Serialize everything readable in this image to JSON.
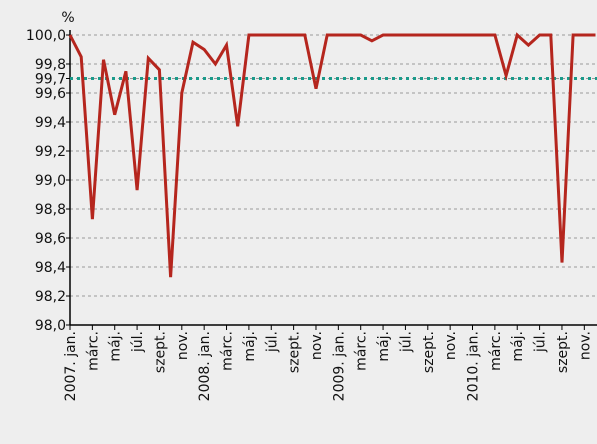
{
  "chart_data": {
    "type": "line",
    "ylabel": "%",
    "categories": [
      "2007. jan.",
      null,
      "márc.",
      null,
      "máj.",
      null,
      "júl.",
      null,
      "szept.",
      null,
      "nov.",
      null,
      "2008. jan.",
      null,
      "márc.",
      null,
      "máj.",
      null,
      "júl.",
      null,
      "szept.",
      null,
      "nov.",
      null,
      "2009. jan.",
      null,
      "márc.",
      null,
      "máj.",
      null,
      "júl.",
      null,
      "szept.",
      null,
      "nov.",
      null,
      "2010. jan.",
      null,
      "márc.",
      null,
      "máj.",
      null,
      "júl.",
      null,
      "szept.",
      null,
      "nov.",
      null
    ],
    "series": [
      {
        "color": "#b5261e",
        "values": [
          100.0,
          99.85,
          98.73,
          99.83,
          99.45,
          99.75,
          98.93,
          99.84,
          99.76,
          98.33,
          99.6,
          99.95,
          99.9,
          99.8,
          99.93,
          99.37,
          100.0,
          100.0,
          100.0,
          100.0,
          100.0,
          100.0,
          99.63,
          100.0,
          100.0,
          100.0,
          100.0,
          99.96,
          100.0,
          100.0,
          100.0,
          100.0,
          100.0,
          100.0,
          100.0,
          100.0,
          100.0,
          100.0,
          100.0,
          99.72,
          100.0,
          99.93,
          100.0,
          100.0,
          98.43,
          100.0,
          100.0,
          100.0
        ]
      }
    ],
    "reference_line": {
      "value": 99.7,
      "color": "#1a9a8a"
    },
    "ylim": [
      98.0,
      100.0
    ],
    "yticks": [
      {
        "value": 98.0,
        "label": "98,0"
      },
      {
        "value": 98.2,
        "label": "98,2"
      },
      {
        "value": 98.4,
        "label": "98,4"
      },
      {
        "value": 98.6,
        "label": "98,6"
      },
      {
        "value": 98.8,
        "label": "98,8"
      },
      {
        "value": 99.0,
        "label": "99,0"
      },
      {
        "value": 99.2,
        "label": "99,2"
      },
      {
        "value": 99.4,
        "label": "99,4"
      },
      {
        "value": 99.6,
        "label": "99,6"
      },
      {
        "value": 99.7,
        "label": "99,7"
      },
      {
        "value": 99.8,
        "label": "99,8"
      },
      {
        "value": 100.0,
        "label": "100,0"
      }
    ],
    "grid": true
  }
}
